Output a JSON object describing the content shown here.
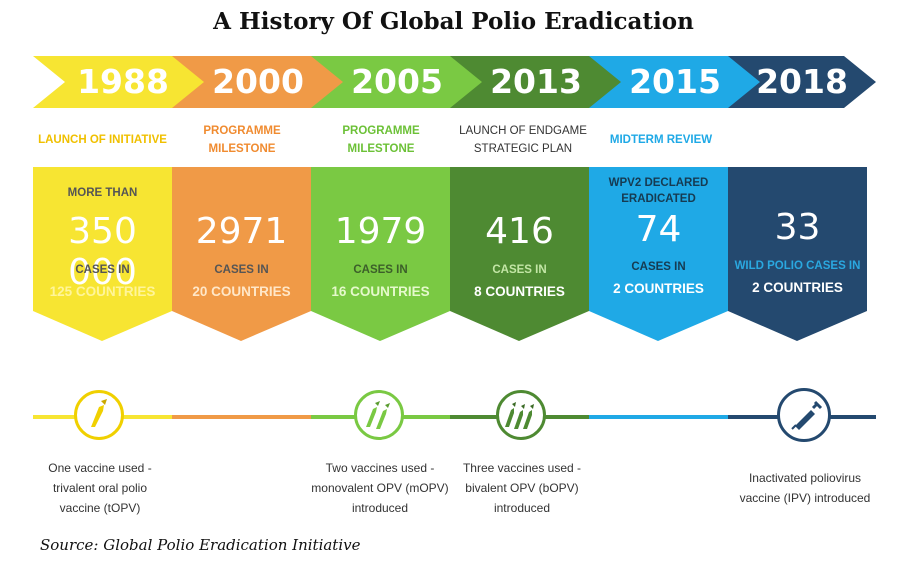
{
  "title": "A History Of Global Polio Eradication",
  "source": "Source: Global Polio Eradication Initiative",
  "milestones": [
    {
      "year": "1988",
      "label_1": "LAUNCH OF INITIATIVE",
      "label_2": "",
      "pre_1": "MORE THAN",
      "pre_2": "",
      "number": "350 000",
      "cases": "CASES IN",
      "countries": "125 COUNTRIES",
      "color": "#f7e532",
      "label_color": "#f0c000",
      "highlight_color": "#fff59a"
    },
    {
      "year": "2000",
      "label_1": "PROGRAMME MILESTONE",
      "label_2": "",
      "pre_1": "",
      "pre_2": "",
      "number": "2971",
      "cases": "CASES IN",
      "countries": "20 COUNTRIES",
      "color": "#f09a47",
      "label_color": "#f08b30",
      "highlight_color": "#ffd7a8"
    },
    {
      "year": "2005",
      "label_1": "PROGRAMME MILESTONE",
      "label_2": "",
      "pre_1": "",
      "pre_2": "",
      "number": "1979",
      "cases": "CASES IN",
      "countries": "16 COUNTRIES",
      "color": "#7ac943",
      "label_color": "#6cc137",
      "highlight_color": "#d5f5a8"
    },
    {
      "year": "2013",
      "label_1": "LAUNCH OF ENDGAME",
      "label_2": "STRATEGIC PLAN",
      "pre_1": "",
      "pre_2": "",
      "number": "416",
      "cases": "CASES IN",
      "countries": "8 COUNTRIES",
      "color": "#4e8a32",
      "label_color": "#333333",
      "highlight_color": "#c3e6a6"
    },
    {
      "year": "2015",
      "label_1": "MIDTERM REVIEW",
      "label_2": "",
      "pre_1": "WPV2 DECLARED",
      "pre_2": "ERADICATED",
      "number": "74",
      "cases": "CASES IN",
      "countries": "2 COUNTRIES",
      "color": "#1fa9e6",
      "label_color": "#1fa9e6",
      "highlight_color": "#bde9fb"
    },
    {
      "year": "2018",
      "label_1": "",
      "label_2": "",
      "pre_1": "",
      "pre_2": "",
      "number": "33",
      "cases": "WILD POLIO CASES IN",
      "countries": "2 COUNTRIES",
      "color": "#24496f",
      "label_color": "#24496f",
      "highlight_color": "#ffffff",
      "cases_color": "#2aa8e0"
    }
  ],
  "vaccines": [
    {
      "line_1": "One vaccine used -",
      "line_2": "trivalent oral polio",
      "line_3": "vaccine (tOPV)",
      "icon": "single-dropper-icon",
      "color": "#f0d000"
    },
    {
      "line_1": "Two vaccines used -",
      "line_2": "monovalent OPV (mOPV)",
      "line_3": "introduced",
      "icon": "double-dropper-icon",
      "color": "#7ac943"
    },
    {
      "line_1": "Three vaccines used -",
      "line_2": "bivalent OPV (bOPV)",
      "line_3": "introduced",
      "icon": "triple-dropper-icon",
      "color": "#4e8a32"
    },
    {
      "line_1": "Inactivated poliovirus",
      "line_2": "vaccine (IPV) introduced",
      "line_3": "",
      "icon": "syringe-icon",
      "color": "#24496f"
    }
  ],
  "timeline_colors": [
    "#f7e532",
    "#f09a47",
    "#7ac943",
    "#4e8a32",
    "#1fa9e6",
    "#24496f"
  ]
}
